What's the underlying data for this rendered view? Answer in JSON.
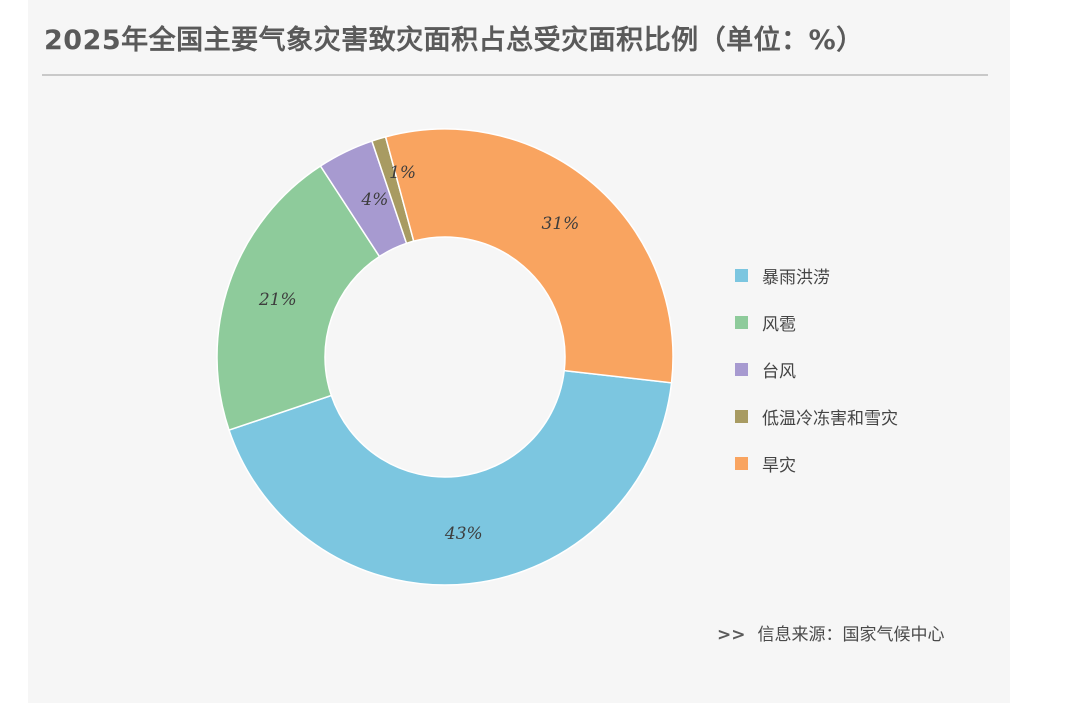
{
  "header": {
    "title": "2025年全国主要气象灾害致灾面积占总受灾面积比例（单位：%）"
  },
  "chart_data": {
    "type": "pie",
    "title": "2025年全国主要气象灾害致灾面积占总受灾面积比例（单位：%）",
    "donut": true,
    "legend_position": "right",
    "series": [
      {
        "name": "暴雨洪涝",
        "value": 43,
        "label": "43%",
        "color": "#7cc6e0"
      },
      {
        "name": "风雹",
        "value": 21,
        "label": "21%",
        "color": "#8ecb9b"
      },
      {
        "name": "台风",
        "value": 4,
        "label": "4%",
        "color": "#a79ad0"
      },
      {
        "name": "低温冷冻害和雪灾",
        "value": 1,
        "label": "1%",
        "color": "#a89b62"
      },
      {
        "name": "旱灾",
        "value": 31,
        "label": "31%",
        "color": "#f9a460"
      }
    ]
  },
  "footer": {
    "arrows": ">>",
    "source": "信息来源：国家气候中心"
  }
}
